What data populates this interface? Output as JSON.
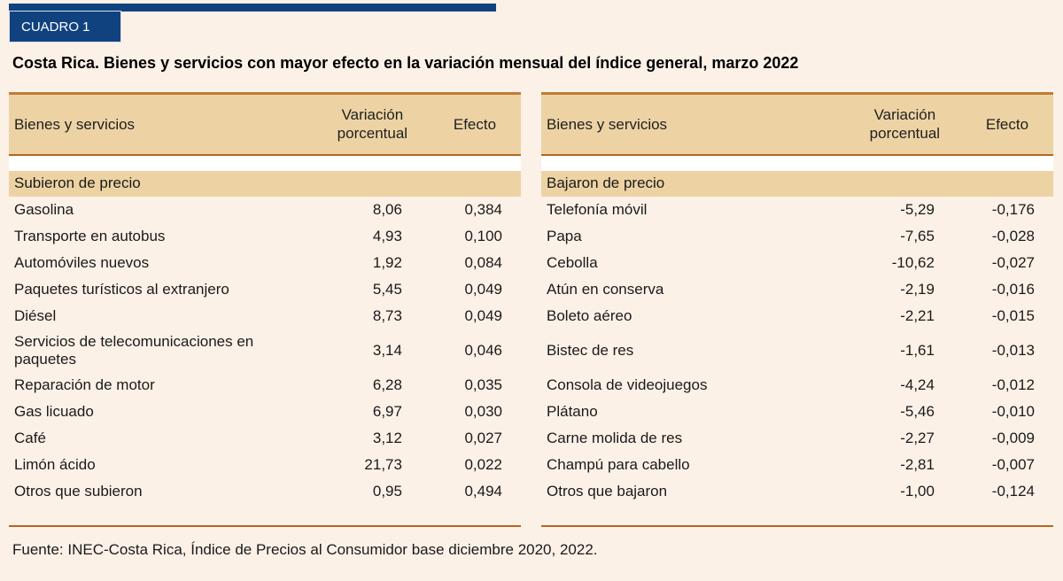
{
  "colors": {
    "accent_navy": "#114280",
    "header_tan": "#edd3a4",
    "rule_strong": "#c07b35",
    "rule_thin": "#b4681f",
    "page_bg": "#fcf1e7",
    "text_color": "#1a1a1a"
  },
  "badge_label": "CUADRO 1",
  "title": "Costa Rica. Bienes y servicios con mayor efecto en la variación mensual del índice general, marzo 2022",
  "tables": [
    {
      "headers": {
        "item": "Bienes y servicios",
        "variation": "Variación porcentual",
        "effect": "Efecto"
      },
      "section_label": "Subieron de precio",
      "rows": [
        {
          "item": "Gasolina",
          "variation": "8,06",
          "effect": "0,384"
        },
        {
          "item": "Transporte en autobus",
          "variation": "4,93",
          "effect": "0,100"
        },
        {
          "item": "Automóviles nuevos",
          "variation": "1,92",
          "effect": "0,084"
        },
        {
          "item": "Paquetes turísticos al extranjero",
          "variation": "5,45",
          "effect": "0,049"
        },
        {
          "item": "Diésel",
          "variation": "8,73",
          "effect": "0,049"
        },
        {
          "item": "Servicios de telecomunicaciones en paquetes",
          "variation": "3,14",
          "effect": "0,046"
        },
        {
          "item": "Reparación de motor",
          "variation": "6,28",
          "effect": "0,035"
        },
        {
          "item": "Gas licuado",
          "variation": "6,97",
          "effect": "0,030"
        },
        {
          "item": "Café",
          "variation": "3,12",
          "effect": "0,027"
        },
        {
          "item": "Limón ácido",
          "variation": "21,73",
          "effect": "0,022"
        },
        {
          "item": "Otros que subieron",
          "variation": "0,95",
          "effect": "0,494"
        }
      ]
    },
    {
      "headers": {
        "item": "Bienes y servicios",
        "variation": "Variación porcentual",
        "effect": "Efecto"
      },
      "section_label": "Bajaron de precio",
      "rows": [
        {
          "item": "Telefonía móvil",
          "variation": "-5,29",
          "effect": "-0,176"
        },
        {
          "item": "Papa",
          "variation": "-7,65",
          "effect": "-0,028"
        },
        {
          "item": "Cebolla",
          "variation": "-10,62",
          "effect": "-0,027"
        },
        {
          "item": "Atún en conserva",
          "variation": "-2,19",
          "effect": "-0,016"
        },
        {
          "item": "Boleto aéreo",
          "variation": "-2,21",
          "effect": "-0,015"
        },
        {
          "item": "Bistec de res",
          "variation": "-1,61",
          "effect": "-0,013"
        },
        {
          "item": "Consola de videojuegos",
          "variation": "-4,24",
          "effect": "-0,012"
        },
        {
          "item": "Plátano",
          "variation": "-5,46",
          "effect": "-0,010"
        },
        {
          "item": "Carne molida de res",
          "variation": "-2,27",
          "effect": "-0,009"
        },
        {
          "item": "Champú para cabello",
          "variation": "-2,81",
          "effect": "-0,007"
        },
        {
          "item": "Otros que bajaron",
          "variation": "-1,00",
          "effect": "-0,124"
        }
      ]
    }
  ],
  "source_note": "Fuente: INEC-Costa Rica, Índice de Precios al Consumidor base diciembre 2020, 2022."
}
